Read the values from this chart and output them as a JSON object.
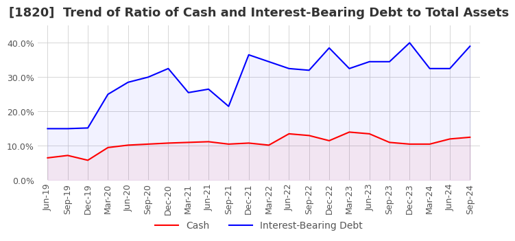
{
  "title": "[1820]  Trend of Ratio of Cash and Interest-Bearing Debt to Total Assets",
  "x_labels": [
    "Jun-19",
    "Sep-19",
    "Dec-19",
    "Mar-20",
    "Jun-20",
    "Sep-20",
    "Dec-20",
    "Mar-21",
    "Jun-21",
    "Sep-21",
    "Dec-21",
    "Mar-22",
    "Jun-22",
    "Sep-22",
    "Dec-22",
    "Mar-23",
    "Jun-23",
    "Sep-23",
    "Dec-23",
    "Mar-24",
    "Jun-24",
    "Sep-24"
  ],
  "cash": [
    6.5,
    7.2,
    5.8,
    9.5,
    10.2,
    10.5,
    10.8,
    11.0,
    11.2,
    10.5,
    10.8,
    10.2,
    13.5,
    13.0,
    11.5,
    14.0,
    13.5,
    11.0,
    10.5,
    10.5,
    12.0,
    12.5
  ],
  "interest_bearing_debt": [
    15.0,
    15.0,
    15.2,
    25.0,
    28.5,
    30.0,
    32.5,
    25.5,
    26.5,
    21.5,
    36.5,
    34.5,
    32.5,
    32.0,
    38.5,
    32.5,
    34.5,
    34.5,
    40.0,
    32.5,
    32.5,
    39.0
  ],
  "cash_color": "#FF0000",
  "debt_color": "#0000FF",
  "ylim": [
    0,
    45
  ],
  "yticks": [
    0,
    10,
    20,
    30,
    40
  ],
  "background_color": "#FFFFFF",
  "grid_color": "#CCCCCC",
  "title_fontsize": 13,
  "axis_fontsize": 9,
  "legend_fontsize": 10
}
